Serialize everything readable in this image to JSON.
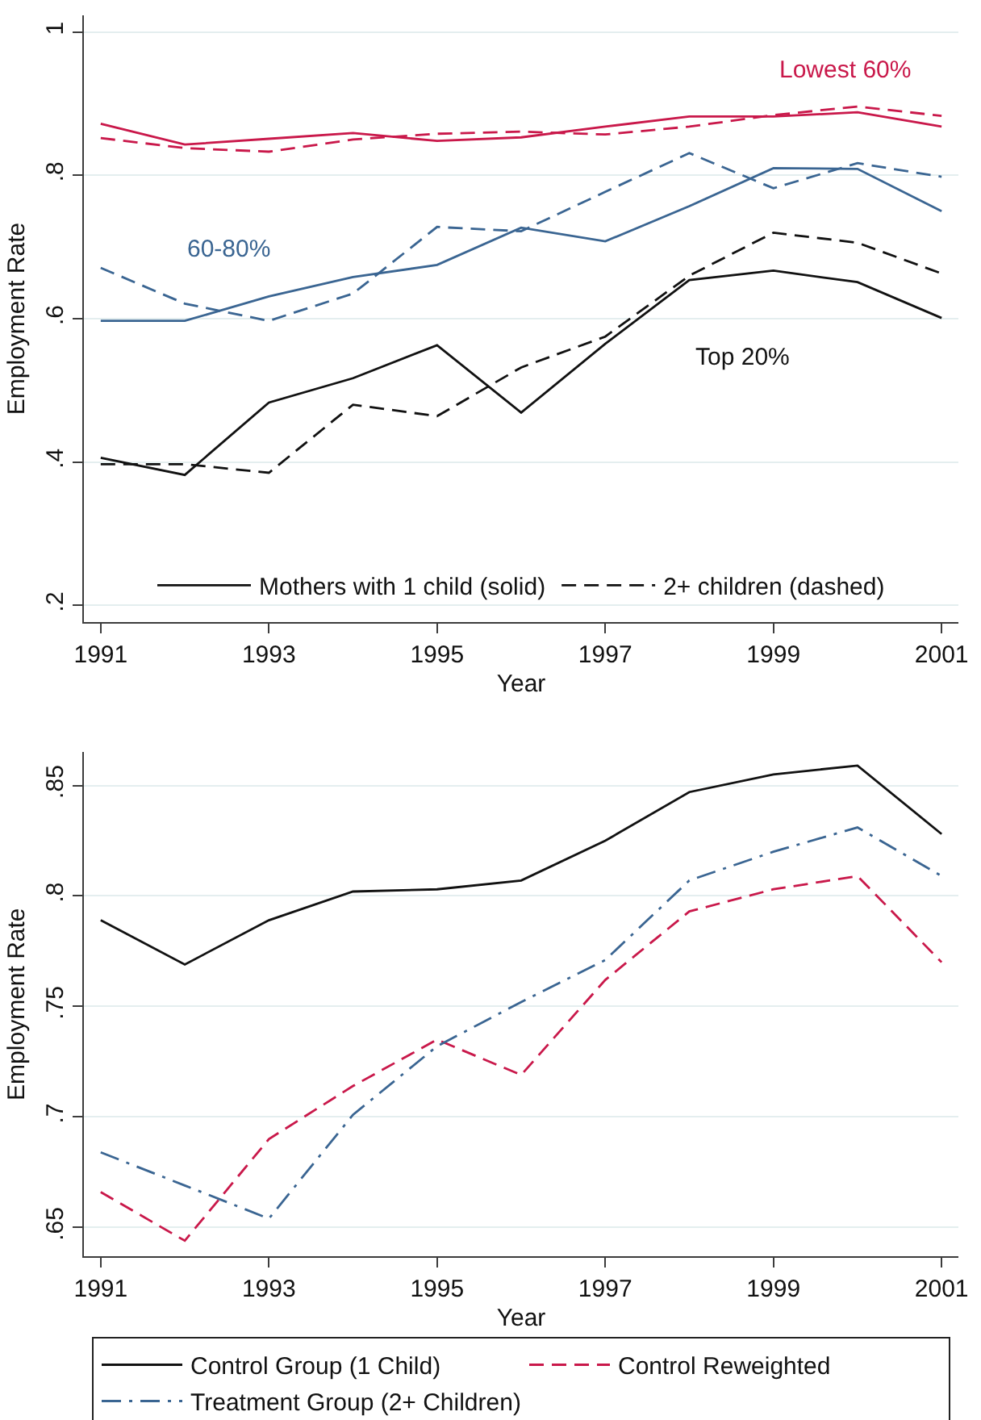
{
  "chart_data": [
    {
      "type": "line",
      "xlabel": "Year",
      "ylabel": "Employment Rate",
      "x": [
        1991,
        1992,
        1993,
        1994,
        1995,
        1996,
        1997,
        1998,
        1999,
        2000,
        2001
      ],
      "xlim": [
        1990.8,
        2001.2
      ],
      "xticks": [
        1991,
        1993,
        1995,
        1997,
        1999,
        2001
      ],
      "ylim": [
        0.177,
        1.023
      ],
      "yticks": [
        {
          "value": 0.2,
          "label": ".2"
        },
        {
          "value": 0.4,
          "label": ".4"
        },
        {
          "value": 0.6,
          "label": ".6"
        },
        {
          "value": 0.8,
          "label": ".8"
        },
        1
      ],
      "grid": "y",
      "legend": "bottom",
      "marker": "none",
      "series": [
        {
          "name": "Mothers with 1 child (solid)",
          "color": "#111111",
          "line_style": "solid",
          "values": [
            0.406,
            0.382,
            0.483,
            0.517,
            0.563,
            0.469,
            0.565,
            0.654,
            0.667,
            0.651,
            0.601
          ]
        },
        {
          "name": "2+ children (dashed)",
          "color": "#111111",
          "line_style": "dashed",
          "values": [
            0.397,
            0.397,
            0.385,
            0.48,
            0.464,
            0.532,
            0.575,
            0.66,
            0.72,
            0.706,
            0.663
          ]
        },
        {
          "color": "#3a6592",
          "line_style": "solid",
          "values": [
            0.597,
            0.597,
            0.631,
            0.658,
            0.675,
            0.727,
            0.708,
            0.757,
            0.81,
            0.809,
            0.75
          ]
        },
        {
          "color": "#3a6592",
          "line_style": "dashed",
          "values": [
            0.671,
            0.621,
            0.597,
            0.635,
            0.728,
            0.722,
            0.777,
            0.831,
            0.782,
            0.817,
            0.798
          ]
        },
        {
          "color": "#c9184a",
          "line_style": "solid",
          "values": [
            0.872,
            0.843,
            0.851,
            0.859,
            0.848,
            0.853,
            0.868,
            0.882,
            0.882,
            0.888,
            0.868
          ]
        },
        {
          "color": "#c9184a",
          "line_style": "dashed",
          "values": [
            0.852,
            0.838,
            0.833,
            0.85,
            0.858,
            0.861,
            0.857,
            0.868,
            0.884,
            0.896,
            0.883
          ]
        }
      ],
      "annotations": [
        "Lowest 60%",
        "60-80%",
        "Top 20%"
      ]
    },
    {
      "type": "line",
      "xlabel": "Year",
      "ylabel": "Employment Rate",
      "x": [
        1991,
        1992,
        1993,
        1994,
        1995,
        1996,
        1997,
        1998,
        1999,
        2000,
        2001
      ],
      "xlim": [
        1990.8,
        2001.2
      ],
      "xticks": [
        1991,
        1993,
        1995,
        1997,
        1999,
        2001
      ],
      "ylim": [
        0.637,
        0.865
      ],
      "yticks": [
        {
          "value": 0.65,
          "label": ".65"
        },
        {
          "value": 0.7,
          "label": ".7"
        },
        {
          "value": 0.75,
          "label": ".75"
        },
        {
          "value": 0.8,
          "label": ".8"
        },
        {
          "value": 0.85,
          "label": ".85"
        }
      ],
      "grid": "y",
      "legend": "bottom",
      "marker": "none",
      "series": [
        {
          "name": "Control Group (1 Child)",
          "color": "#111111",
          "line_style": "solid",
          "values": [
            0.789,
            0.769,
            0.789,
            0.802,
            0.803,
            0.807,
            0.825,
            0.847,
            0.855,
            0.859,
            0.828
          ]
        },
        {
          "name": "Control Reweighted",
          "color": "#c9184a",
          "line_style": "dashed",
          "values": [
            0.666,
            0.644,
            0.69,
            0.714,
            0.735,
            0.719,
            0.762,
            0.793,
            0.803,
            0.809,
            0.77
          ]
        },
        {
          "name": "Treatment Group (2+ Children)",
          "color": "#3a6592",
          "line_style": "dashdot",
          "values": [
            0.684,
            0.669,
            0.654,
            0.701,
            0.732,
            0.752,
            0.771,
            0.807,
            0.82,
            0.831,
            0.809
          ]
        }
      ]
    }
  ]
}
